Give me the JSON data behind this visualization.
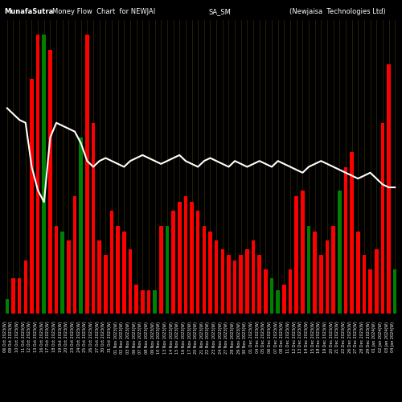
{
  "title_left": "MunafaSutra",
  "title_mid": "Money Flow  Chart  for NEWJAI",
  "title_right_mid": "SA_SM",
  "title_right": "(Newjaisa  Technologies Ltd)",
  "background_color": "#000000",
  "grid_color": "#3a2a00",
  "bar_colors": [
    "green",
    "red",
    "red",
    "red",
    "red",
    "red",
    "green",
    "red",
    "red",
    "green",
    "red",
    "red",
    "green",
    "red",
    "red",
    "red",
    "red",
    "red",
    "red",
    "red",
    "red",
    "red",
    "red",
    "red",
    "green",
    "red",
    "green",
    "red",
    "red",
    "red",
    "red",
    "red",
    "red",
    "red",
    "red",
    "red",
    "red",
    "red",
    "red",
    "red",
    "red",
    "red",
    "red",
    "green",
    "green",
    "red",
    "red",
    "red",
    "red",
    "green",
    "red",
    "red",
    "red",
    "red",
    "green",
    "red",
    "red",
    "red",
    "red",
    "red",
    "red",
    "red",
    "red",
    "green"
  ],
  "bar_heights": [
    5,
    12,
    12,
    18,
    80,
    95,
    95,
    90,
    30,
    28,
    25,
    40,
    60,
    95,
    65,
    25,
    20,
    35,
    30,
    28,
    22,
    10,
    8,
    8,
    8,
    30,
    30,
    35,
    38,
    40,
    38,
    35,
    30,
    28,
    25,
    22,
    20,
    18,
    20,
    22,
    25,
    20,
    15,
    12,
    8,
    10,
    15,
    40,
    42,
    30,
    28,
    20,
    25,
    30,
    42,
    50,
    55,
    28,
    20,
    15,
    22,
    65,
    85,
    15
  ],
  "line_values": [
    70,
    68,
    66,
    65,
    50,
    42,
    38,
    60,
    65,
    64,
    63,
    62,
    58,
    52,
    50,
    52,
    53,
    52,
    51,
    50,
    52,
    53,
    54,
    53,
    52,
    51,
    52,
    53,
    54,
    52,
    51,
    50,
    52,
    53,
    52,
    51,
    50,
    52,
    51,
    50,
    51,
    52,
    51,
    50,
    52,
    51,
    50,
    49,
    48,
    50,
    51,
    52,
    51,
    50,
    49,
    48,
    47,
    46,
    47,
    48,
    46,
    44,
    43,
    43
  ],
  "x_labels": [
    "06 Oct 2023(W)",
    "09 Oct 2023(W)",
    "10 Oct 2023(W)",
    "11 Oct 2023(W)",
    "12 Oct 2023(W)",
    "13 Oct 2023(W)",
    "16 Oct 2023(W)",
    "17 Oct 2023(W)",
    "18 Oct 2023(W)",
    "19 Oct 2023(W)",
    "20 Oct 2023(W)",
    "23 Oct 2023(W)",
    "24 Oct 2023(W)",
    "25 Oct 2023(W)",
    "26 Oct 2023(W)",
    "27 Oct 2023(W)",
    "30 Oct 2023(W)",
    "31 Oct 2023(W)",
    "01 Nov 2023(W)",
    "02 Nov 2023(W)",
    "03 Nov 2023(W)",
    "06 Nov 2023(W)",
    "07 Nov 2023(W)",
    "08 Nov 2023(W)",
    "09 Nov 2023(W)",
    "10 Nov 2023(W)",
    "13 Nov 2023(W)",
    "14 Nov 2023(W)",
    "15 Nov 2023(W)",
    "16 Nov 2023(W)",
    "17 Nov 2023(W)",
    "20 Nov 2023(W)",
    "21 Nov 2023(W)",
    "22 Nov 2023(W)",
    "23 Nov 2023(W)",
    "24 Nov 2023(W)",
    "27 Nov 2023(W)",
    "28 Nov 2023(W)",
    "29 Nov 2023(W)",
    "30 Nov 2023(W)",
    "01 Dec 2023(W)",
    "04 Dec 2023(W)",
    "05 Dec 2023(W)",
    "06 Dec 2023(W)",
    "07 Dec 2023(W)",
    "08 Dec 2023(W)",
    "11 Dec 2023(W)",
    "12 Dec 2023(W)",
    "13 Dec 2023(W)",
    "14 Dec 2023(W)",
    "15 Dec 2023(W)",
    "18 Dec 2023(W)",
    "19 Dec 2023(W)",
    "20 Dec 2023(W)",
    "21 Dec 2023(W)",
    "22 Dec 2023(W)",
    "26 Dec 2023(W)",
    "27 Dec 2023(W)",
    "28 Dec 2023(W)",
    "29 Dec 2023(W)",
    "01 Jan 2024(W)",
    "02 Jan 2024(W)",
    "03 Jan 2024(W)",
    "04 Jan 2024(W)"
  ],
  "n_bars": 64,
  "ylim": [
    0,
    100
  ],
  "line_ylim": [
    35,
    80
  ],
  "figsize": [
    5.0,
    5.0
  ],
  "dpi": 100
}
